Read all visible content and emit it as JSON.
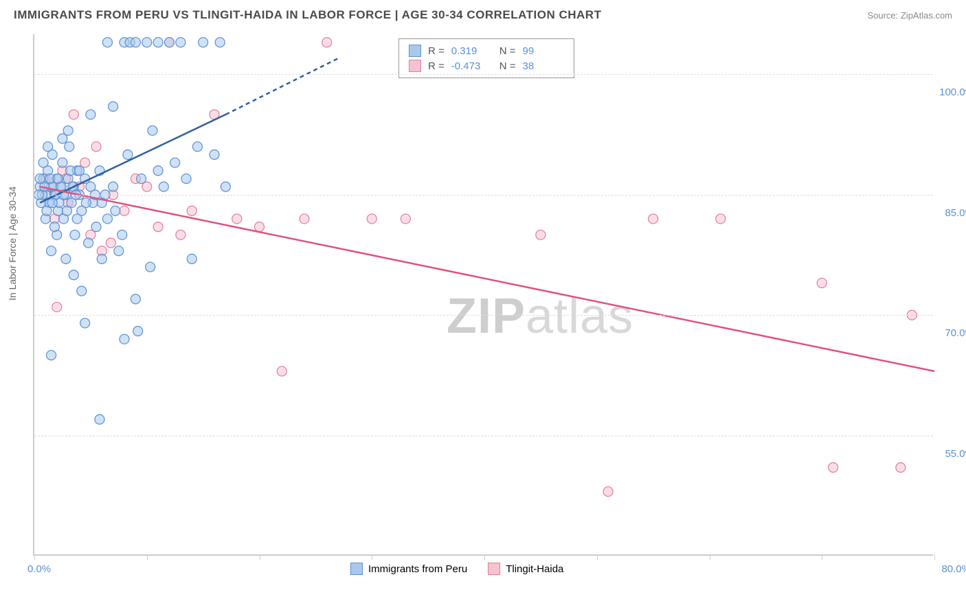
{
  "header": {
    "title": "IMMIGRANTS FROM PERU VS TLINGIT-HAIDA IN LABOR FORCE | AGE 30-34 CORRELATION CHART",
    "source": "Source: ZipAtlas.com"
  },
  "chart": {
    "type": "scatter",
    "ylabel": "In Labor Force | Age 30-34",
    "xlim": [
      0,
      80
    ],
    "ylim": [
      40,
      105
    ],
    "x_ticks": [
      0,
      10,
      20,
      30,
      40,
      50,
      60,
      70,
      80
    ],
    "y_ticks": [
      55,
      70,
      85,
      100
    ],
    "y_tick_labels": [
      "55.0%",
      "70.0%",
      "85.0%",
      "100.0%"
    ],
    "x_min_label": "0.0%",
    "x_max_label": "80.0%",
    "grid_color": "#dddddd",
    "axis_color": "#cccccc",
    "background_color": "#ffffff",
    "tick_label_color": "#5b8fd6",
    "axis_label_color": "#666666",
    "watermark_text_1": "ZIP",
    "watermark_text_2": "atlas"
  },
  "series": {
    "peru": {
      "label": "Immigrants from Peru",
      "color_fill": "#a8c8ec",
      "color_stroke": "#5b8fd6",
      "marker_radius": 7,
      "fill_opacity": 0.55,
      "r_value": "0.319",
      "n_value": "99",
      "trend": {
        "x1": 0.5,
        "y1": 84,
        "x2": 17,
        "y2": 95,
        "dash_x2": 27,
        "dash_y2": 102,
        "stroke": "#2c5fa3",
        "width": 2.5
      },
      "points": [
        [
          0.5,
          86
        ],
        [
          0.8,
          87
        ],
        [
          1.0,
          85
        ],
        [
          1.2,
          88
        ],
        [
          1.3,
          84
        ],
        [
          1.5,
          86
        ],
        [
          1.6,
          90
        ],
        [
          1.8,
          85
        ],
        [
          2.0,
          87
        ],
        [
          2.1,
          83
        ],
        [
          2.3,
          86
        ],
        [
          2.5,
          89
        ],
        [
          2.6,
          82
        ],
        [
          2.8,
          85
        ],
        [
          3.0,
          87
        ],
        [
          3.1,
          91
        ],
        [
          3.3,
          84
        ],
        [
          3.5,
          86
        ],
        [
          3.6,
          80
        ],
        [
          3.8,
          88
        ],
        [
          4.0,
          85
        ],
        [
          4.2,
          83
        ],
        [
          4.5,
          87
        ],
        [
          4.8,
          79
        ],
        [
          5.0,
          86
        ],
        [
          5.2,
          84
        ],
        [
          5.5,
          81
        ],
        [
          5.8,
          88
        ],
        [
          6.0,
          77
        ],
        [
          6.3,
          85
        ],
        [
          6.5,
          104
        ],
        [
          7.0,
          96
        ],
        [
          7.2,
          83
        ],
        [
          7.5,
          78
        ],
        [
          8.0,
          104
        ],
        [
          8.3,
          90
        ],
        [
          8.5,
          104
        ],
        [
          9.0,
          104
        ],
        [
          9.2,
          68
        ],
        [
          9.5,
          87
        ],
        [
          10.0,
          104
        ],
        [
          10.3,
          76
        ],
        [
          10.5,
          93
        ],
        [
          11.0,
          104
        ],
        [
          11.5,
          86
        ],
        [
          12.0,
          104
        ],
        [
          12.5,
          89
        ],
        [
          13.0,
          104
        ],
        [
          13.5,
          87
        ],
        [
          14.0,
          77
        ],
        [
          14.5,
          91
        ],
        [
          15.0,
          104
        ],
        [
          16.0,
          90
        ],
        [
          16.5,
          104
        ],
        [
          17.0,
          86
        ],
        [
          1.5,
          65
        ],
        [
          5.0,
          95
        ],
        [
          5.8,
          57
        ],
        [
          3.5,
          75
        ],
        [
          4.2,
          73
        ],
        [
          2.0,
          80
        ],
        [
          6.5,
          82
        ],
        [
          7.8,
          80
        ],
        [
          1.0,
          82
        ],
        [
          1.8,
          81
        ],
        [
          0.8,
          89
        ],
        [
          1.2,
          91
        ],
        [
          2.5,
          92
        ],
        [
          3.0,
          93
        ],
        [
          8.0,
          67
        ],
        [
          9.0,
          72
        ],
        [
          4.5,
          69
        ],
        [
          11.0,
          88
        ],
        [
          3.8,
          82
        ],
        [
          1.5,
          78
        ],
        [
          2.8,
          77
        ],
        [
          6.0,
          84
        ],
        [
          7.0,
          86
        ],
        [
          2.2,
          84
        ],
        [
          1.7,
          86
        ],
        [
          0.6,
          84
        ],
        [
          1.1,
          83
        ],
        [
          1.9,
          85
        ],
        [
          2.4,
          86
        ],
        [
          3.2,
          88
        ],
        [
          0.7,
          85
        ],
        [
          1.4,
          87
        ],
        [
          2.6,
          85
        ],
        [
          3.4,
          86
        ],
        [
          4.0,
          88
        ],
        [
          4.6,
          84
        ],
        [
          5.4,
          85
        ],
        [
          0.9,
          86
        ],
        [
          1.6,
          84
        ],
        [
          2.1,
          87
        ],
        [
          2.9,
          83
        ],
        [
          3.7,
          85
        ],
        [
          0.4,
          85
        ],
        [
          0.5,
          87
        ]
      ]
    },
    "tlingit": {
      "label": "Tlingit-Haida",
      "color_fill": "#f5c2d0",
      "color_stroke": "#e67a9a",
      "marker_radius": 7,
      "fill_opacity": 0.55,
      "r_value": "-0.473",
      "n_value": "38",
      "trend": {
        "x1": 0.5,
        "y1": 86,
        "x2": 80,
        "y2": 63,
        "stroke": "#e0527a",
        "width": 2.5
      },
      "points": [
        [
          1.0,
          87
        ],
        [
          1.5,
          85
        ],
        [
          2.0,
          71
        ],
        [
          2.5,
          88
        ],
        [
          3.0,
          84
        ],
        [
          3.5,
          95
        ],
        [
          4.0,
          86
        ],
        [
          5.0,
          80
        ],
        [
          5.5,
          91
        ],
        [
          6.0,
          78
        ],
        [
          7.0,
          85
        ],
        [
          8.0,
          83
        ],
        [
          10.0,
          86
        ],
        [
          11.0,
          81
        ],
        [
          12.0,
          104
        ],
        [
          13.0,
          80
        ],
        [
          14.0,
          83
        ],
        [
          16.0,
          95
        ],
        [
          18.0,
          82
        ],
        [
          20.0,
          81
        ],
        [
          22.0,
          63
        ],
        [
          24.0,
          82
        ],
        [
          26.0,
          104
        ],
        [
          30.0,
          82
        ],
        [
          33.0,
          82
        ],
        [
          45.0,
          80
        ],
        [
          51.0,
          48
        ],
        [
          55.0,
          82
        ],
        [
          61.0,
          82
        ],
        [
          70.0,
          74
        ],
        [
          71.0,
          51
        ],
        [
          77.0,
          51
        ],
        [
          78.0,
          70
        ],
        [
          1.8,
          82
        ],
        [
          2.8,
          87
        ],
        [
          4.5,
          89
        ],
        [
          6.8,
          79
        ],
        [
          9.0,
          87
        ]
      ]
    }
  },
  "stats_box": {
    "r_label": "R =",
    "n_label": "N ="
  },
  "legend": {
    "items": [
      "peru",
      "tlingit"
    ]
  }
}
